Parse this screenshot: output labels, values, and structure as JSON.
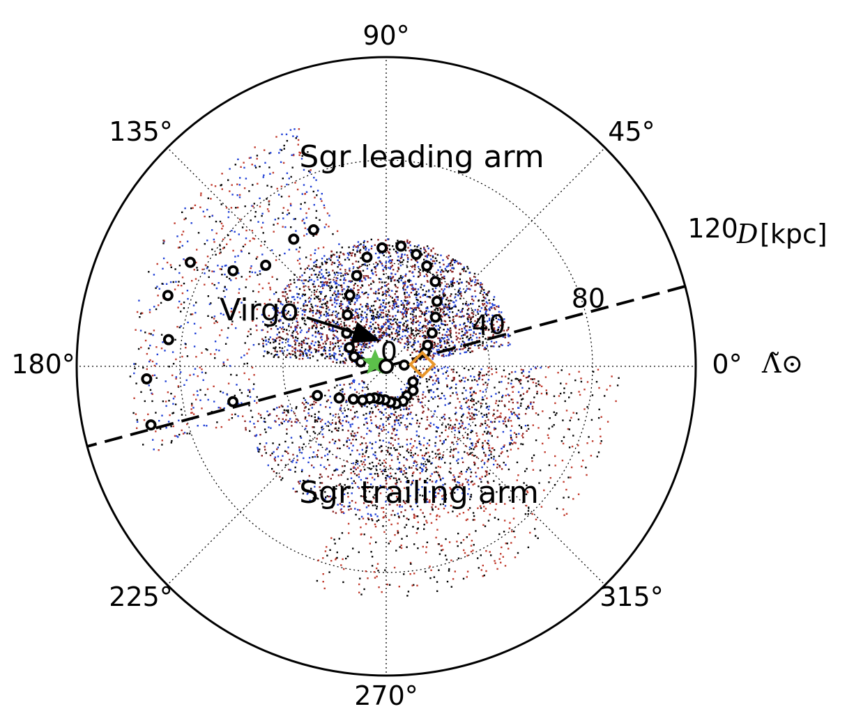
{
  "chart_data": {
    "type": "scatter",
    "projection": "polar",
    "theta_axis": {
      "label": "Λ̃⊙",
      "ticks": [
        0,
        45,
        90,
        135,
        180,
        225,
        270,
        315
      ],
      "tick_labels": [
        "0°",
        "45°",
        "90°",
        "135°",
        "180°",
        "225°",
        "270°",
        "315°"
      ],
      "direction": "counterclockwise",
      "zero_location": "right"
    },
    "r_axis": {
      "label": "D",
      "unit": "[kpc]",
      "ticks": [
        0,
        40,
        80,
        120
      ],
      "tick_labels": [
        "0",
        "40",
        "80",
        "120"
      ],
      "rlim": [
        0,
        120
      ],
      "label_angle_deg": 15
    },
    "grid": true,
    "annotations": [
      {
        "text": "Sgr leading arm",
        "theta": 90,
        "r": 82
      },
      {
        "text": "Sgr trailing arm",
        "theta": 270,
        "r": 55
      },
      {
        "text": "Virgo",
        "theta": 160,
        "r": 30,
        "arrow_to": {
          "theta": 165,
          "r": 4
        }
      }
    ],
    "dashed_line": {
      "theta": 15,
      "description": "through origin",
      "r_extent": 120
    },
    "markers": {
      "sun": {
        "theta": 0,
        "r": 0
      },
      "galactic_center": {
        "theta": 163,
        "r": 4.5
      },
      "sgr_core": {
        "theta": 3,
        "r": 14
      }
    },
    "model_track": [
      {
        "theta": 4,
        "r": 7
      },
      {
        "theta": 20,
        "r": 16
      },
      {
        "theta": 27,
        "r": 18
      },
      {
        "theta": 36,
        "r": 22
      },
      {
        "theta": 45,
        "r": 27
      },
      {
        "theta": 52,
        "r": 32
      },
      {
        "theta": 60,
        "r": 38
      },
      {
        "theta": 68,
        "r": 42
      },
      {
        "theta": 75,
        "r": 45
      },
      {
        "theta": 83,
        "r": 47
      },
      {
        "theta": 92,
        "r": 46
      },
      {
        "theta": 100,
        "r": 43
      },
      {
        "theta": 108,
        "r": 37
      },
      {
        "theta": 117,
        "r": 31
      },
      {
        "theta": 127,
        "r": 25
      },
      {
        "theta": 140,
        "r": 20
      },
      {
        "theta": 153,
        "r": 16
      },
      {
        "theta": 163,
        "r": 13
      },
      {
        "theta": 170,
        "r": 10
      },
      {
        "theta": 118,
        "r": 60
      },
      {
        "theta": 126,
        "r": 61
      },
      {
        "theta": 140,
        "r": 61
      },
      {
        "theta": 148,
        "r": 70
      },
      {
        "theta": 152,
        "r": 86
      },
      {
        "theta": 162,
        "r": 89
      },
      {
        "theta": 173,
        "r": 85
      },
      {
        "theta": 183,
        "r": 93
      },
      {
        "theta": 194,
        "r": 94
      },
      {
        "theta": 193,
        "r": 61
      },
      {
        "theta": 330,
        "r": 12
      },
      {
        "theta": 318,
        "r": 14
      },
      {
        "theta": 305,
        "r": 14
      },
      {
        "theta": 296,
        "r": 15
      },
      {
        "theta": 285,
        "r": 15
      },
      {
        "theta": 277,
        "r": 14
      },
      {
        "theta": 268,
        "r": 13
      },
      {
        "theta": 258,
        "r": 13
      },
      {
        "theta": 250,
        "r": 13
      },
      {
        "theta": 243,
        "r": 14
      },
      {
        "theta": 235,
        "r": 16
      },
      {
        "theta": 225,
        "r": 18
      },
      {
        "theta": 214,
        "r": 22
      },
      {
        "theta": 203,
        "r": 29
      }
    ],
    "point_clouds": [
      {
        "region": "leading loop",
        "theta_range": [
          10,
          175
        ],
        "r_range": [
          10,
          50
        ],
        "density": "high",
        "colors": [
          "#8b2020",
          "#1f3fd6",
          "#000000"
        ]
      },
      {
        "region": "leading arm far",
        "theta_range": [
          110,
          200
        ],
        "r_range": [
          50,
          100
        ],
        "density": "low",
        "colors": [
          "#1f3fd6",
          "#000000",
          "#c0392b"
        ]
      },
      {
        "region": "trailing arm",
        "theta_range": [
          200,
          360
        ],
        "r_range": [
          10,
          60
        ],
        "density": "medium",
        "colors": [
          "#8b2020",
          "#000000",
          "#1f3fd6"
        ]
      },
      {
        "region": "trailing arm outskirts",
        "theta_range": [
          250,
          360
        ],
        "r_range": [
          30,
          90
        ],
        "density": "low",
        "colors": [
          "#c0392b",
          "#000000"
        ]
      }
    ],
    "colors": {
      "red_points": "#8b2020",
      "blue_points": "#1f3fd6",
      "black_points": "#000000",
      "model_track_marker": "#000000",
      "gc_marker": "#5cbf4a",
      "core_marker": "#e8962a"
    }
  }
}
